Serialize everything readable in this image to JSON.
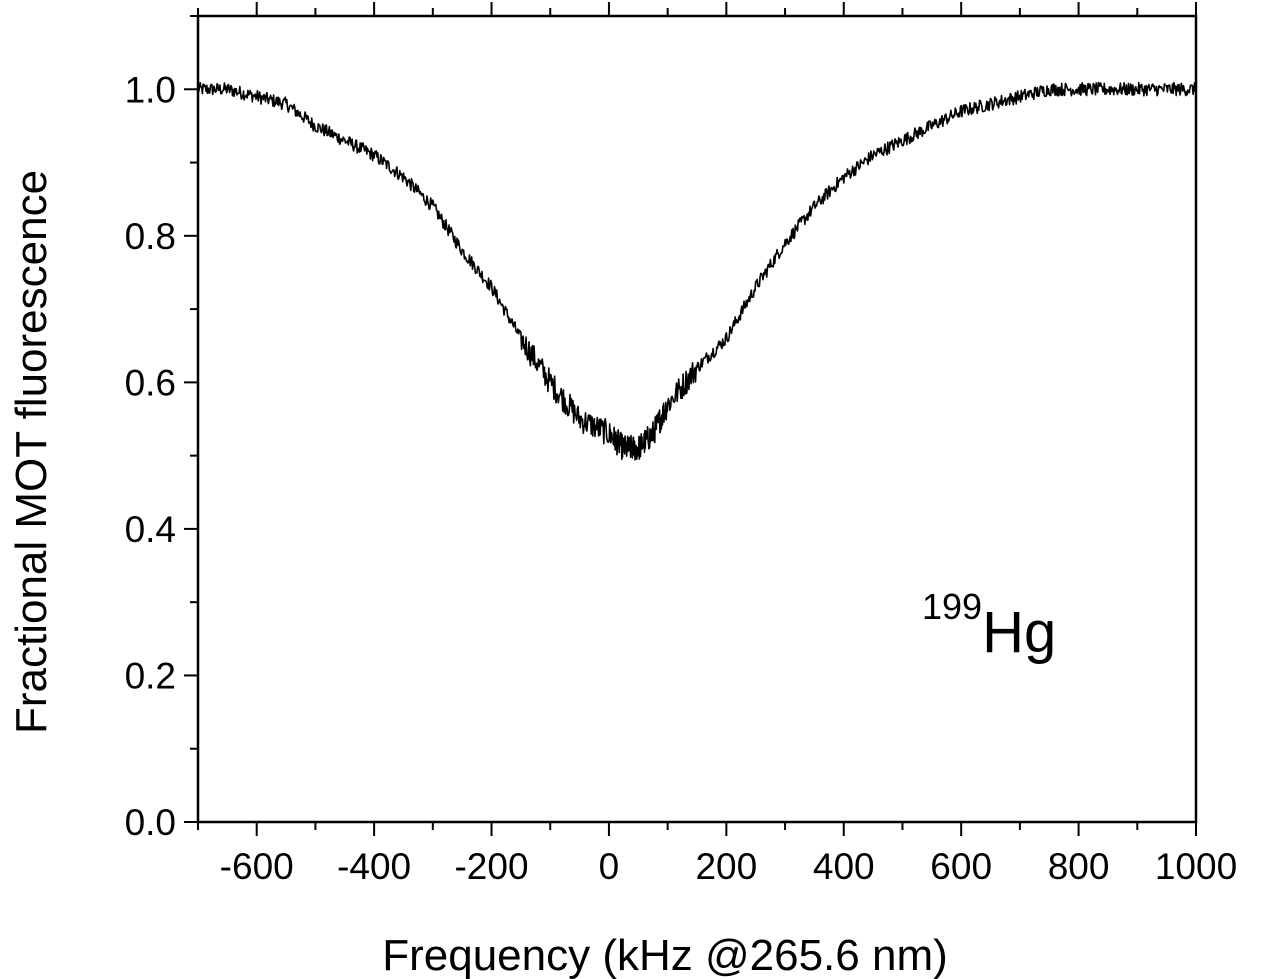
{
  "chart_data": {
    "type": "line",
    "xlabel": "Frequency (kHz @265.6 nm)",
    "ylabel": "Fractional MOT fluorescence",
    "xlim": [
      -700,
      1000
    ],
    "ylim": [
      0.0,
      1.1
    ],
    "x_ticks": [
      -600,
      -400,
      -200,
      0,
      200,
      400,
      600,
      800,
      1000
    ],
    "x_tick_labels": [
      "-600",
      "-400",
      "-200",
      "0",
      "200",
      "400",
      "600",
      "800",
      "1000"
    ],
    "y_ticks": [
      0.0,
      0.2,
      0.4,
      0.6,
      0.8,
      1.0
    ],
    "y_tick_labels": [
      "0.0",
      "0.2",
      "0.4",
      "0.6",
      "0.8",
      "1.0"
    ],
    "grid": false,
    "annotation": {
      "superscript": "199",
      "text": "Hg"
    },
    "series": [
      {
        "line_color": "#000000",
        "x": [
          -700,
          -650,
          -600,
          -550,
          -500,
          -450,
          -400,
          -350,
          -300,
          -250,
          -200,
          -150,
          -100,
          -50,
          0,
          25,
          50,
          75,
          100,
          150,
          200,
          250,
          300,
          350,
          400,
          450,
          500,
          550,
          600,
          650,
          700,
          750,
          800,
          850,
          900,
          950,
          1000
        ],
        "y": [
          1.0,
          1.0,
          0.99,
          0.98,
          0.95,
          0.93,
          0.91,
          0.88,
          0.84,
          0.78,
          0.73,
          0.66,
          0.6,
          0.55,
          0.53,
          0.51,
          0.51,
          0.53,
          0.57,
          0.62,
          0.66,
          0.73,
          0.79,
          0.84,
          0.88,
          0.91,
          0.93,
          0.95,
          0.97,
          0.98,
          0.99,
          1.0,
          1.0,
          1.0,
          1.0,
          1.0,
          1.0
        ]
      }
    ]
  }
}
